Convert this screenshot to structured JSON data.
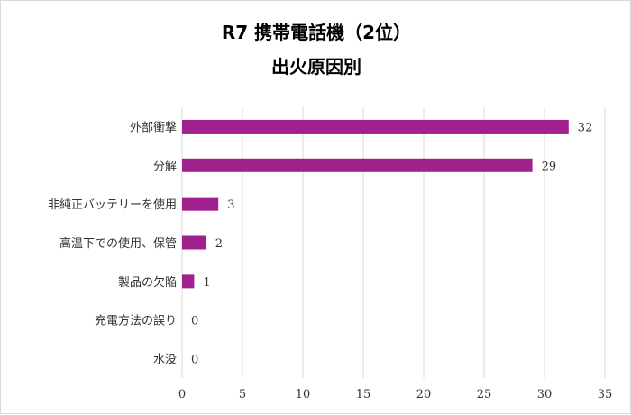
{
  "chart_data": {
    "type": "bar",
    "orientation": "horizontal",
    "title": "R7 携帯電話機（2位）",
    "subtitle": "出火原因別",
    "categories": [
      "外部衝撃",
      "分解",
      "非純正バッテリーを使用",
      "高温下での使用、保管",
      "製品の欠陥",
      "充電方法の誤り",
      "水没"
    ],
    "values": [
      32,
      29,
      3,
      2,
      1,
      0,
      0
    ],
    "x_ticks": [
      0,
      5,
      10,
      15,
      20,
      25,
      30,
      35
    ],
    "xlim": [
      0,
      35
    ],
    "grid": true,
    "legend": false,
    "bar_color": "#a0218e"
  }
}
